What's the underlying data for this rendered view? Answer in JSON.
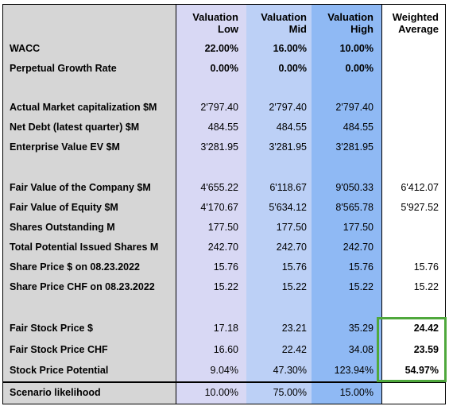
{
  "headers": {
    "low": "Valuation Low",
    "low_l1": "Valuation",
    "low_l2": "Low",
    "mid_l1": "Valuation",
    "mid_l2": "Mid",
    "high_l1": "Valuation",
    "high_l2": "High",
    "wavg_l1": "Weighted",
    "wavg_l2": "Average"
  },
  "rows": [
    {
      "label": "WACC",
      "low": "22.00%",
      "mid": "16.00%",
      "high": "10.00%",
      "wavg": ""
    },
    {
      "label": "Perpetual Growth Rate",
      "low": "0.00%",
      "mid": "0.00%",
      "high": "0.00%",
      "wavg": ""
    },
    {
      "label": "Actual Market capitalization $M",
      "low": "2'797.40",
      "mid": "2'797.40",
      "high": "2'797.40",
      "wavg": ""
    },
    {
      "label": "Net Debt (latest quarter) $M",
      "low": "484.55",
      "mid": "484.55",
      "high": "484.55",
      "wavg": ""
    },
    {
      "label": "Enterprise Value EV $M",
      "low": "3'281.95",
      "mid": "3'281.95",
      "high": "3'281.95",
      "wavg": ""
    },
    {
      "label": "Fair Value of the Company $M",
      "low": "4'655.22",
      "mid": "6'118.67",
      "high": "9'050.33",
      "wavg": "6'412.07"
    },
    {
      "label": "Fair Value of Equity $M",
      "low": "4'170.67",
      "mid": "5'634.12",
      "high": "8'565.78",
      "wavg": "5'927.52"
    },
    {
      "label": "Shares Outstanding M",
      "low": "177.50",
      "mid": "177.50",
      "high": "177.50",
      "wavg": ""
    },
    {
      "label": "Total Potential Issued Shares M",
      "low": "242.70",
      "mid": "242.70",
      "high": "242.70",
      "wavg": ""
    },
    {
      "label": "Share Price $ on 08.23.2022",
      "low": "15.76",
      "mid": "15.76",
      "high": "15.76",
      "wavg": "15.76"
    },
    {
      "label": "Share Price CHF on 08.23.2022",
      "low": "15.22",
      "mid": "15.22",
      "high": "15.22",
      "wavg": "15.22"
    },
    {
      "label": "Fair Stock Price $",
      "low": "17.18",
      "mid": "23.21",
      "high": "35.29",
      "wavg": "24.42"
    },
    {
      "label": "Fair Stock Price CHF",
      "low": "16.60",
      "mid": "22.42",
      "high": "34.08",
      "wavg": "23.59"
    },
    {
      "label": "Stock Price Potential",
      "low": "9.04%",
      "mid": "47.30%",
      "high": "123.94%",
      "wavg": "54.97%"
    },
    {
      "label": "Scenario likelihood",
      "low": "10.00%",
      "mid": "75.00%",
      "high": "15.00%",
      "wavg": ""
    }
  ],
  "colors": {
    "low_column": "#d8d8f4",
    "mid_column": "#bcd0f6",
    "high_column": "#8fb9f4",
    "label_column": "#d6d6d6",
    "highlight_border": "#4fa83c"
  }
}
